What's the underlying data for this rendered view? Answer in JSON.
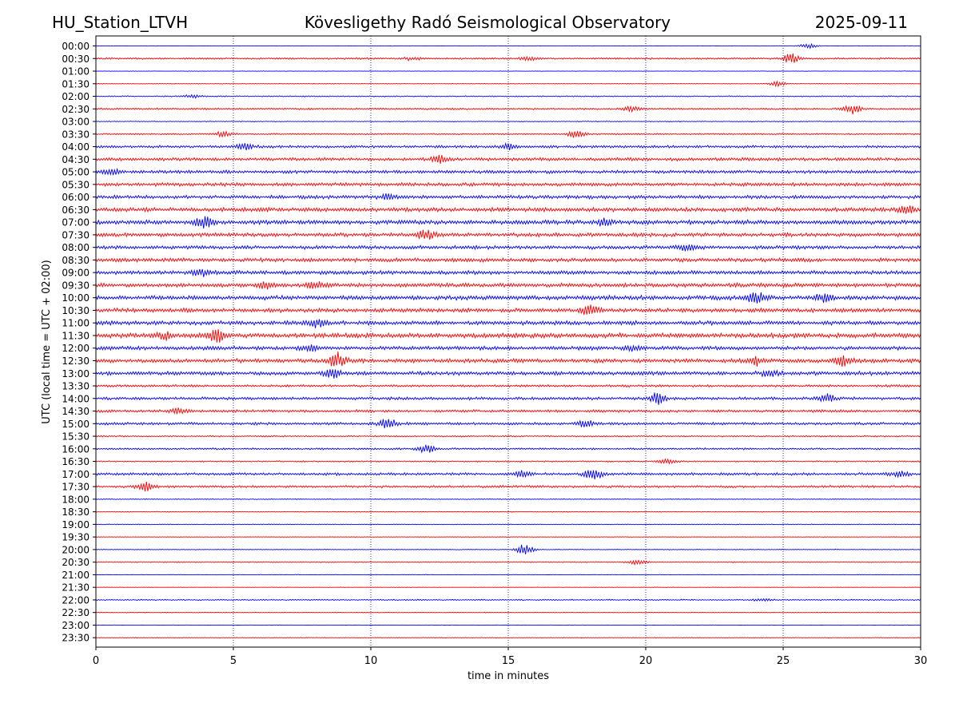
{
  "header": {
    "station": "HU_Station_LTVH",
    "observatory": "Kövesligethy Radó Seismological Observatory",
    "date": "2025-09-11"
  },
  "colors": {
    "row_a": "#0000ff",
    "row_b": "#ff0000",
    "grid": "#000080"
  },
  "chart_data": {
    "type": "line",
    "subtype": "helicorder",
    "xlabel": "time in minutes",
    "ylabel": "UTC (local time = UTC + 02:00)",
    "xlim": [
      0,
      30
    ],
    "x_ticks": [
      0,
      5,
      10,
      15,
      20,
      25,
      30
    ],
    "grid": "vertical dotted lines at x ticks",
    "row_labels": [
      "00:00",
      "00:30",
      "01:00",
      "01:30",
      "02:00",
      "02:30",
      "03:00",
      "03:30",
      "04:00",
      "04:30",
      "05:00",
      "05:30",
      "06:00",
      "06:30",
      "07:00",
      "07:30",
      "08:00",
      "08:30",
      "09:00",
      "09:30",
      "10:00",
      "10:30",
      "11:00",
      "11:30",
      "12:00",
      "12:30",
      "13:00",
      "13:30",
      "14:00",
      "14:30",
      "15:00",
      "15:30",
      "16:00",
      "16:30",
      "17:00",
      "17:30",
      "18:00",
      "18:30",
      "19:00",
      "19:30",
      "20:00",
      "20:30",
      "21:00",
      "21:30",
      "22:00",
      "22:30",
      "23:00",
      "23:30"
    ],
    "row_noise_amplitude": [
      0.3,
      1.2,
      0.3,
      0.4,
      0.8,
      1.2,
      0.6,
      1.0,
      1.8,
      2.2,
      2.2,
      2.4,
      2.4,
      2.8,
      3.0,
      2.6,
      2.4,
      2.6,
      2.6,
      2.8,
      3.0,
      2.8,
      2.8,
      3.2,
      2.6,
      2.8,
      2.6,
      1.6,
      2.0,
      1.8,
      1.8,
      1.0,
      1.2,
      0.9,
      1.8,
      1.6,
      0.6,
      0.5,
      0.5,
      0.4,
      0.5,
      0.6,
      0.3,
      0.3,
      0.8,
      0.4,
      0.3,
      0.4
    ],
    "events": [
      {
        "row": "00:00",
        "minute": 25.9,
        "amplitude": 3
      },
      {
        "row": "00:30",
        "minute": 11.5,
        "amplitude": 2
      },
      {
        "row": "00:30",
        "minute": 15.8,
        "amplitude": 2
      },
      {
        "row": "00:30",
        "minute": 25.3,
        "amplitude": 6
      },
      {
        "row": "01:30",
        "minute": 24.8,
        "amplitude": 3
      },
      {
        "row": "02:00",
        "minute": 3.5,
        "amplitude": 2
      },
      {
        "row": "02:30",
        "minute": 19.5,
        "amplitude": 3
      },
      {
        "row": "02:30",
        "minute": 27.5,
        "amplitude": 6
      },
      {
        "row": "03:30",
        "minute": 4.6,
        "amplitude": 3
      },
      {
        "row": "03:30",
        "minute": 17.5,
        "amplitude": 5
      },
      {
        "row": "04:00",
        "minute": 5.4,
        "amplitude": 4
      },
      {
        "row": "04:00",
        "minute": 15.0,
        "amplitude": 4
      },
      {
        "row": "04:30",
        "minute": 12.5,
        "amplitude": 4
      },
      {
        "row": "05:00",
        "minute": 0.6,
        "amplitude": 3
      },
      {
        "row": "06:00",
        "minute": 10.6,
        "amplitude": 3
      },
      {
        "row": "06:30",
        "minute": 29.5,
        "amplitude": 4
      },
      {
        "row": "07:00",
        "minute": 3.9,
        "amplitude": 8
      },
      {
        "row": "07:00",
        "minute": 18.5,
        "amplitude": 4
      },
      {
        "row": "07:30",
        "minute": 12.0,
        "amplitude": 6
      },
      {
        "row": "08:00",
        "minute": 21.5,
        "amplitude": 4
      },
      {
        "row": "09:00",
        "minute": 3.8,
        "amplitude": 4
      },
      {
        "row": "09:30",
        "minute": 6.2,
        "amplitude": 4
      },
      {
        "row": "09:30",
        "minute": 8.0,
        "amplitude": 4
      },
      {
        "row": "10:00",
        "minute": 24.0,
        "amplitude": 6
      },
      {
        "row": "10:00",
        "minute": 26.5,
        "amplitude": 4
      },
      {
        "row": "10:30",
        "minute": 18.0,
        "amplitude": 6
      },
      {
        "row": "11:00",
        "minute": 8.1,
        "amplitude": 5
      },
      {
        "row": "11:30",
        "minute": 4.4,
        "amplitude": 7
      },
      {
        "row": "11:30",
        "minute": 2.5,
        "amplitude": 4
      },
      {
        "row": "12:00",
        "minute": 7.8,
        "amplitude": 3
      },
      {
        "row": "12:00",
        "minute": 19.5,
        "amplitude": 3
      },
      {
        "row": "12:30",
        "minute": 8.8,
        "amplitude": 9
      },
      {
        "row": "12:30",
        "minute": 24.0,
        "amplitude": 5
      },
      {
        "row": "12:30",
        "minute": 27.2,
        "amplitude": 6
      },
      {
        "row": "13:00",
        "minute": 8.6,
        "amplitude": 5
      },
      {
        "row": "13:00",
        "minute": 24.5,
        "amplitude": 4
      },
      {
        "row": "14:00",
        "minute": 20.4,
        "amplitude": 7
      },
      {
        "row": "14:00",
        "minute": 26.6,
        "amplitude": 5
      },
      {
        "row": "14:30",
        "minute": 3.0,
        "amplitude": 3
      },
      {
        "row": "15:00",
        "minute": 10.6,
        "amplitude": 6
      },
      {
        "row": "15:00",
        "minute": 17.8,
        "amplitude": 4
      },
      {
        "row": "16:00",
        "minute": 12.0,
        "amplitude": 5
      },
      {
        "row": "16:30",
        "minute": 20.8,
        "amplitude": 3
      },
      {
        "row": "17:00",
        "minute": 18.1,
        "amplitude": 7
      },
      {
        "row": "17:00",
        "minute": 15.5,
        "amplitude": 4
      },
      {
        "row": "17:00",
        "minute": 29.2,
        "amplitude": 4
      },
      {
        "row": "17:30",
        "minute": 1.8,
        "amplitude": 5
      },
      {
        "row": "20:00",
        "minute": 15.6,
        "amplitude": 7
      },
      {
        "row": "20:30",
        "minute": 19.7,
        "amplitude": 3
      },
      {
        "row": "22:00",
        "minute": 24.2,
        "amplitude": 2
      }
    ]
  }
}
